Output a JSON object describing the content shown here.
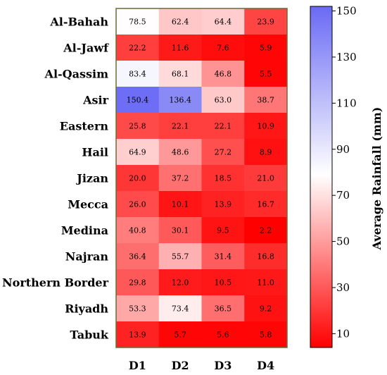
{
  "chart_data": {
    "type": "heatmap",
    "title": "",
    "xlabel": "",
    "ylabel": "",
    "rows": [
      "Al-Bahah",
      "Al-Jawf",
      "Al-Qassim",
      "Asir",
      "Eastern",
      "Hail",
      "Jizan",
      "Mecca",
      "Medina",
      "Najran",
      "Northern Border",
      "Riyadh",
      "Tabuk"
    ],
    "columns": [
      "D1",
      "D2",
      "D3",
      "D4"
    ],
    "values": [
      [
        78.5,
        62.4,
        64.4,
        23.9
      ],
      [
        22.2,
        11.6,
        7.6,
        5.9
      ],
      [
        83.4,
        68.1,
        46.8,
        5.5
      ],
      [
        150.4,
        136.4,
        63.0,
        38.7
      ],
      [
        25.8,
        22.1,
        22.1,
        10.9
      ],
      [
        64.9,
        48.6,
        27.2,
        8.9
      ],
      [
        20.0,
        37.2,
        18.5,
        21.0
      ],
      [
        26.0,
        10.1,
        13.9,
        16.7
      ],
      [
        40.8,
        30.1,
        9.5,
        2.2
      ],
      [
        36.4,
        55.7,
        31.4,
        16.8
      ],
      [
        29.8,
        12.0,
        10.5,
        11.0
      ],
      [
        53.3,
        73.4,
        36.5,
        9.2
      ],
      [
        13.9,
        5.7,
        5.6,
        5.8
      ]
    ],
    "value_labels": [
      [
        "78.5",
        "62.4",
        "64.4",
        "23.9"
      ],
      [
        "22.2",
        "11.6",
        "7.6",
        "5.9"
      ],
      [
        "83.4",
        "68.1",
        "46.8",
        "5.5"
      ],
      [
        "150.4",
        "136.4",
        "63.0",
        "38.7"
      ],
      [
        "25.8",
        "22.1",
        "22.1",
        "10.9"
      ],
      [
        "64.9",
        "48.6",
        "27.2",
        "8.9"
      ],
      [
        "20.0",
        "37.2",
        "18.5",
        "21.0"
      ],
      [
        "26.0",
        "10.1",
        "13.9",
        "16.7"
      ],
      [
        "40.8",
        "30.1",
        "9.5",
        "2.2"
      ],
      [
        "36.4",
        "55.7",
        "31.4",
        "16.8"
      ],
      [
        "29.8",
        "12.0",
        "10.5",
        "11.0"
      ],
      [
        "53.3",
        "73.4",
        "36.5",
        "9.2"
      ],
      [
        "13.9",
        "5.7",
        "5.6",
        "5.8"
      ]
    ],
    "colorbar": {
      "label": "Average Rainfall (mm)",
      "ticks": [
        10,
        30,
        50,
        70,
        90,
        110,
        130,
        150
      ],
      "tick_labels": [
        "10",
        "30",
        "50",
        "70",
        "90",
        "110",
        "130",
        "150"
      ],
      "range": [
        4,
        152
      ],
      "colors": {
        "low": "#ff0000",
        "mid": "#ffffff",
        "high": "#6a6af5"
      },
      "mid_value": 79
    }
  }
}
